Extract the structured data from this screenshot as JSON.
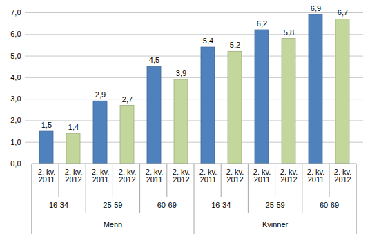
{
  "chart_data": {
    "type": "bar",
    "categories": [
      "16-34",
      "25-59",
      "60-69",
      "16-34",
      "25-59",
      "60-69"
    ],
    "category_groups": [
      "Menn",
      "Menn",
      "Menn",
      "Kvinner",
      "Kvinner",
      "Kvinner"
    ],
    "series": [
      {
        "name": "2. kv. 2011",
        "color": "#4f81bd",
        "values": [
          1.5,
          2.9,
          4.5,
          5.4,
          6.2,
          6.9
        ],
        "value_labels": [
          "1,5",
          "2,9",
          "4,5",
          "5,4",
          "6,2",
          "6,9"
        ]
      },
      {
        "name": "2. kv. 2012",
        "color": "#c3d69b",
        "values": [
          1.4,
          2.7,
          3.9,
          5.2,
          5.8,
          6.7
        ],
        "value_labels": [
          "1,4",
          "2,7",
          "3,9",
          "5,2",
          "5,8",
          "6,7"
        ]
      }
    ],
    "ylim": [
      0,
      7
    ],
    "yticks": [
      {
        "value": 0,
        "label": "0,0"
      },
      {
        "value": 1,
        "label": "1,0"
      },
      {
        "value": 2,
        "label": "2,0"
      },
      {
        "value": 3,
        "label": "3,0"
      },
      {
        "value": 4,
        "label": "4,0"
      },
      {
        "value": 5,
        "label": "5,0"
      },
      {
        "value": 6,
        "label": "6,0"
      },
      {
        "value": 7,
        "label": "7,0"
      }
    ],
    "grid": true,
    "data_labels": true
  }
}
